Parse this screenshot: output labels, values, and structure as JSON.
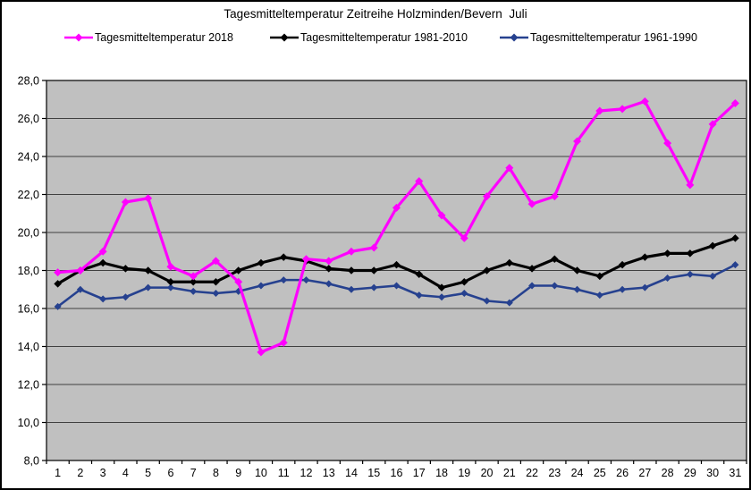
{
  "chart_data": {
    "type": "line",
    "title": "Tagesmitteltemperatur Zeitreihe Holzminden/Bevern  Juli",
    "xlabel": "",
    "ylabel": "",
    "x": [
      1,
      2,
      3,
      4,
      5,
      6,
      7,
      8,
      9,
      10,
      11,
      12,
      13,
      14,
      15,
      16,
      17,
      18,
      19,
      20,
      21,
      22,
      23,
      24,
      25,
      26,
      27,
      28,
      29,
      30,
      31
    ],
    "ylim": [
      8,
      28
    ],
    "ytick_step": 2,
    "ytick_labels": [
      "28,0",
      "26,0",
      "24,0",
      "22,0",
      "20,0",
      "18,0",
      "16,0",
      "14,0",
      "12,0",
      "10,0",
      "8,0"
    ],
    "grid": true,
    "plot_bg": "#C0C0C0",
    "gridline_color": "#404040",
    "legend_position": "top",
    "series": [
      {
        "name": "Tagesmitteltemperatur 2018",
        "color": "#FF00FF",
        "values": [
          17.9,
          18.0,
          19.0,
          21.6,
          21.8,
          18.2,
          17.7,
          18.5,
          17.4,
          13.7,
          14.2,
          18.6,
          18.5,
          19.0,
          19.2,
          21.3,
          22.7,
          20.9,
          19.7,
          21.9,
          23.4,
          21.5,
          21.9,
          24.8,
          26.4,
          26.5,
          26.9,
          24.7,
          22.5,
          25.7,
          26.8
        ]
      },
      {
        "name": "Tagesmitteltemperatur 1981-2010",
        "color": "#000000",
        "values": [
          17.3,
          18.0,
          18.4,
          18.1,
          18.0,
          17.4,
          17.4,
          17.4,
          18.0,
          18.4,
          18.7,
          18.5,
          18.1,
          18.0,
          18.0,
          18.3,
          17.8,
          17.1,
          17.4,
          18.0,
          18.4,
          18.1,
          18.6,
          18.0,
          17.7,
          18.3,
          18.7,
          18.9,
          18.9,
          19.3,
          19.7
        ]
      },
      {
        "name": "Tagesmitteltemperatur 1961-1990",
        "color": "#26418F",
        "values": [
          16.1,
          17.0,
          16.5,
          16.6,
          17.1,
          17.1,
          16.9,
          16.8,
          16.9,
          17.2,
          17.5,
          17.5,
          17.3,
          17.0,
          17.1,
          17.2,
          16.7,
          16.6,
          16.8,
          16.4,
          16.3,
          17.2,
          17.2,
          17.0,
          16.7,
          17.0,
          17.1,
          17.6,
          17.8,
          17.7,
          18.3
        ]
      }
    ]
  }
}
